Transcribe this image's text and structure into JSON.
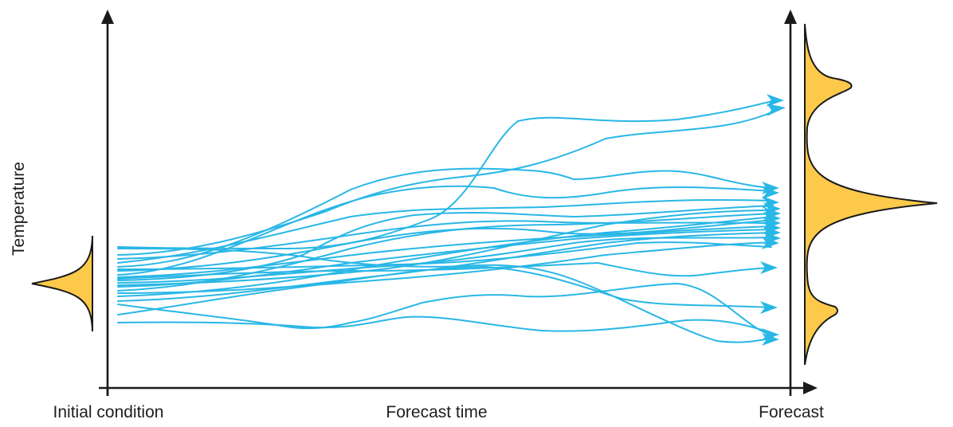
{
  "labels": {
    "y_axis": "Temperature",
    "initial": "Initial condition",
    "time": "Forecast time",
    "forecast": "Forecast"
  },
  "colors": {
    "trajectory": "#29B7E6",
    "distribution_fill": "#FDC94A",
    "axis": "#1a1a1a"
  },
  "icons": {
    "axis_arrow": "triangle-arrowhead",
    "trajectory_arrow": "triangle-arrowhead"
  },
  "figure": {
    "type": "ensemble-forecast-schematic",
    "trajectory_count": 20,
    "initial_distribution": "narrow unimodal",
    "forecast_distribution": "trimodal"
  }
}
